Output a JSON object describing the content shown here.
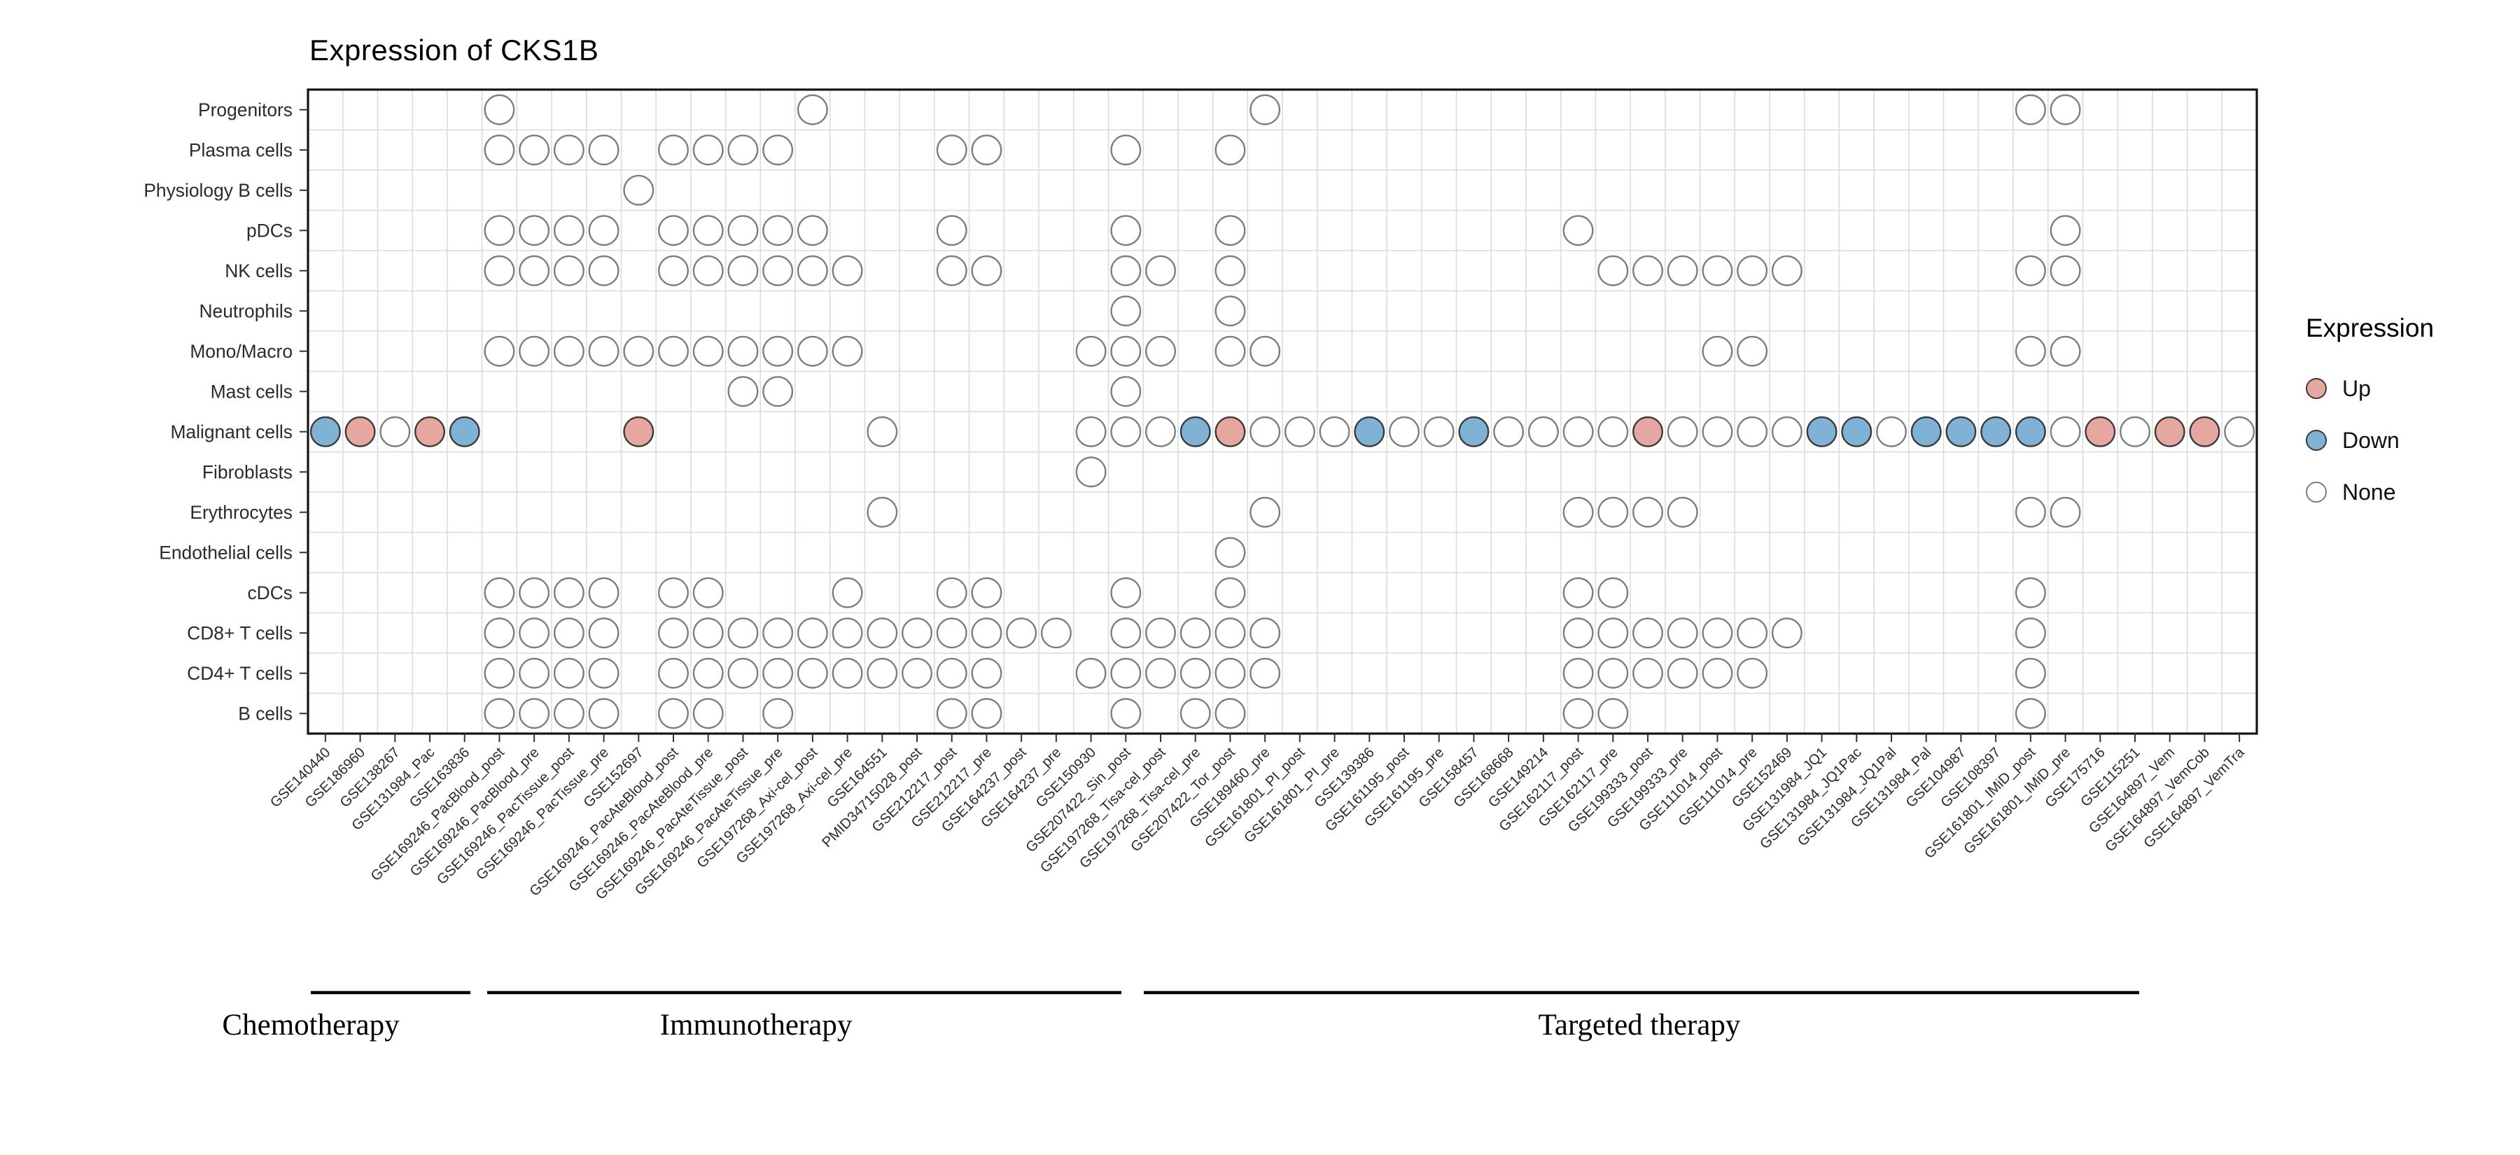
{
  "chart_data": {
    "type": "heatmap",
    "title": "Expression of CKS1B",
    "gene": "CKS1B",
    "rows": [
      "Progenitors",
      "Plasma cells",
      "Physiology B cells",
      "pDCs",
      "NK cells",
      "Neutrophils",
      "Mono/Macro",
      "Mast cells",
      "Malignant cells",
      "Fibroblasts",
      "Erythrocytes",
      "Endothelial cells",
      "cDCs",
      "CD8+ T cells",
      "CD4+ T cells",
      "B cells"
    ],
    "columns": [
      "GSE140440",
      "GSE186960",
      "GSE138267",
      "GSE131984_Pac",
      "GSE163836",
      "GSE169246_PacBlood_post",
      "GSE169246_PacBlood_pre",
      "GSE169246_PacTissue_post",
      "GSE169246_PacTissue_pre",
      "GSE152697",
      "GSE169246_PacAteBlood_post",
      "GSE169246_PacAteBlood_pre",
      "GSE169246_PacAteTissue_post",
      "GSE169246_PacAteTissue_pre",
      "GSE197268_Axi-cel_post",
      "GSE197268_Axi-cel_pre",
      "GSE164551",
      "PMID34715028_post",
      "GSE212217_post",
      "GSE212217_pre",
      "GSE164237_post",
      "GSE164237_pre",
      "GSE150930",
      "GSE207422_Sin_post",
      "GSE197268_Tisa-cel_post",
      "GSE197268_Tisa-cel_pre",
      "GSE207422_Tor_post",
      "GSE189460_pre",
      "GSE161801_PI_post",
      "GSE161801_PI_pre",
      "GSE139386",
      "GSE161195_post",
      "GSE161195_pre",
      "GSE158457",
      "GSE168668",
      "GSE149214",
      "GSE162117_post",
      "GSE162117_pre",
      "GSE199333_post",
      "GSE199333_pre",
      "GSE111014_post",
      "GSE111014_pre",
      "GSE152469",
      "GSE131984_JQ1",
      "GSE131984_JQ1Pac",
      "GSE131984_JQ1Pal",
      "GSE131984_Pal",
      "GSE104987",
      "GSE108397",
      "GSE161801_IMiD_post",
      "GSE161801_IMiD_pre",
      "GSE175716",
      "GSE115251",
      "GSE164897_Vem",
      "GSE164897_VemCob",
      "GSE164897_VemTra"
    ],
    "groups": [
      {
        "label": "Chemotherapy",
        "col_start": 1,
        "col_end": 5
      },
      {
        "label": "Immunotherapy",
        "col_start": 6,
        "col_end": 27
      },
      {
        "label": "Targeted therapy",
        "col_start": 28,
        "col_end": 56
      }
    ],
    "legend": {
      "title": "Expression",
      "items": [
        {
          "label": "Up",
          "value": "Up"
        },
        {
          "label": "Down",
          "value": "Down"
        },
        {
          "label": "None",
          "value": "None"
        }
      ]
    },
    "colors": {
      "up": "#E5A79F",
      "down": "#7FB2D4",
      "none": "#FFFFFF",
      "stroke_colored": "#3A3A3A",
      "stroke_none": "#7D7D7D",
      "grid": "#DBDBDB",
      "border": "#141414"
    },
    "cells": {
      "Progenitors": {
        "None": [
          6,
          15,
          28,
          50,
          51
        ]
      },
      "Plasma cells": {
        "None": [
          6,
          7,
          8,
          9,
          11,
          12,
          13,
          14,
          19,
          20,
          24,
          27
        ]
      },
      "Physiology B cells": {
        "None": [
          10
        ]
      },
      "pDCs": {
        "None": [
          6,
          7,
          8,
          9,
          11,
          12,
          13,
          14,
          15,
          19,
          24,
          27,
          37,
          51
        ]
      },
      "NK cells": {
        "None": [
          6,
          7,
          8,
          9,
          11,
          12,
          13,
          14,
          15,
          16,
          19,
          20,
          24,
          25,
          27,
          38,
          39,
          40,
          41,
          42,
          43,
          50,
          51
        ]
      },
      "Neutrophils": {
        "None": [
          24,
          27
        ]
      },
      "Mono/Macro": {
        "None": [
          6,
          7,
          8,
          9,
          10,
          11,
          12,
          13,
          14,
          15,
          16,
          23,
          24,
          25,
          27,
          28,
          41,
          42,
          50,
          51
        ]
      },
      "Mast cells": {
        "None": [
          13,
          14,
          24
        ]
      },
      "Malignant cells": {
        "Up": [
          2,
          4,
          10,
          27,
          39,
          52,
          54,
          55
        ],
        "Down": [
          1,
          5,
          26,
          31,
          34,
          44,
          45,
          47,
          48,
          49,
          50
        ],
        "None": [
          3,
          17,
          23,
          24,
          25,
          28,
          29,
          30,
          32,
          33,
          35,
          36,
          37,
          38,
          40,
          41,
          42,
          43,
          46,
          51,
          53,
          56
        ]
      },
      "Fibroblasts": {
        "None": [
          23
        ]
      },
      "Erythrocytes": {
        "None": [
          17,
          28,
          37,
          38,
          39,
          40,
          50,
          51
        ]
      },
      "Endothelial cells": {
        "None": [
          27
        ]
      },
      "cDCs": {
        "None": [
          6,
          7,
          8,
          9,
          11,
          12,
          16,
          19,
          20,
          24,
          27,
          37,
          38,
          50
        ]
      },
      "CD8+ T cells": {
        "None": [
          6,
          7,
          8,
          9,
          11,
          12,
          13,
          14,
          15,
          16,
          17,
          18,
          19,
          20,
          21,
          22,
          24,
          25,
          26,
          27,
          28,
          37,
          38,
          39,
          40,
          41,
          42,
          43,
          50
        ]
      },
      "CD4+ T cells": {
        "None": [
          6,
          7,
          8,
          9,
          11,
          12,
          13,
          14,
          15,
          16,
          17,
          18,
          19,
          20,
          23,
          24,
          25,
          26,
          27,
          28,
          37,
          38,
          39,
          40,
          41,
          42,
          50
        ]
      },
      "B cells": {
        "None": [
          6,
          7,
          8,
          9,
          11,
          12,
          14,
          19,
          20,
          24,
          26,
          27,
          37,
          38,
          50
        ]
      }
    }
  }
}
